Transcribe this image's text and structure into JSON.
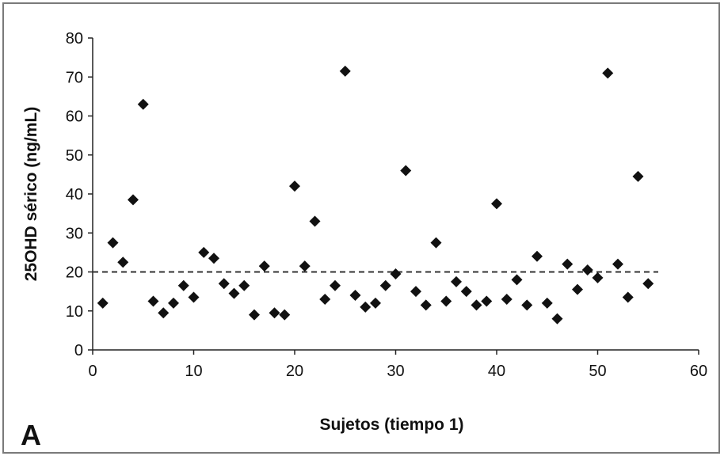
{
  "chart_data": {
    "type": "scatter",
    "xlabel": "Sujetos (tiempo 1)",
    "ylabel": "25OHD sérico (ng/mL)",
    "panel_label": "A",
    "xlim": [
      0,
      60
    ],
    "ylim": [
      0,
      80
    ],
    "x_ticks": [
      "0",
      "10",
      "20",
      "30",
      "40",
      "50",
      "60"
    ],
    "y_ticks": [
      "0",
      "10",
      "20",
      "30",
      "40",
      "50",
      "60",
      "70",
      "80"
    ],
    "marker": "diamond",
    "marker_color": "#111111",
    "reference_line": {
      "y": 20,
      "x_range": [
        0,
        56
      ],
      "style": "dashed"
    },
    "grid": false,
    "points": [
      {
        "x": 1,
        "y": 12
      },
      {
        "x": 2,
        "y": 27.5
      },
      {
        "x": 3,
        "y": 22.5
      },
      {
        "x": 4,
        "y": 38.5
      },
      {
        "x": 5,
        "y": 63
      },
      {
        "x": 6,
        "y": 12.5
      },
      {
        "x": 7,
        "y": 9.5
      },
      {
        "x": 8,
        "y": 12
      },
      {
        "x": 9,
        "y": 16.5
      },
      {
        "x": 10,
        "y": 13.5
      },
      {
        "x": 11,
        "y": 25
      },
      {
        "x": 12,
        "y": 23.5
      },
      {
        "x": 13,
        "y": 17
      },
      {
        "x": 14,
        "y": 14.5
      },
      {
        "x": 15,
        "y": 16.5
      },
      {
        "x": 16,
        "y": 9
      },
      {
        "x": 17,
        "y": 21.5
      },
      {
        "x": 18,
        "y": 9.5
      },
      {
        "x": 19,
        "y": 9
      },
      {
        "x": 20,
        "y": 42
      },
      {
        "x": 21,
        "y": 21.5
      },
      {
        "x": 22,
        "y": 33
      },
      {
        "x": 23,
        "y": 13
      },
      {
        "x": 24,
        "y": 16.5
      },
      {
        "x": 25,
        "y": 71.5
      },
      {
        "x": 26,
        "y": 14
      },
      {
        "x": 27,
        "y": 11
      },
      {
        "x": 28,
        "y": 12
      },
      {
        "x": 29,
        "y": 16.5
      },
      {
        "x": 30,
        "y": 19.5
      },
      {
        "x": 31,
        "y": 46
      },
      {
        "x": 32,
        "y": 15
      },
      {
        "x": 33,
        "y": 11.5
      },
      {
        "x": 34,
        "y": 27.5
      },
      {
        "x": 35,
        "y": 12.5
      },
      {
        "x": 36,
        "y": 17.5
      },
      {
        "x": 37,
        "y": 15
      },
      {
        "x": 38,
        "y": 11.5
      },
      {
        "x": 39,
        "y": 12.5
      },
      {
        "x": 40,
        "y": 37.5
      },
      {
        "x": 41,
        "y": 13
      },
      {
        "x": 42,
        "y": 18
      },
      {
        "x": 43,
        "y": 11.5
      },
      {
        "x": 44,
        "y": 24
      },
      {
        "x": 45,
        "y": 12
      },
      {
        "x": 46,
        "y": 8
      },
      {
        "x": 47,
        "y": 22
      },
      {
        "x": 48,
        "y": 15.5
      },
      {
        "x": 49,
        "y": 20.5
      },
      {
        "x": 50,
        "y": 18.5
      },
      {
        "x": 51,
        "y": 71
      },
      {
        "x": 52,
        "y": 22
      },
      {
        "x": 53,
        "y": 13.5
      },
      {
        "x": 54,
        "y": 44.5
      },
      {
        "x": 55,
        "y": 17
      }
    ]
  }
}
